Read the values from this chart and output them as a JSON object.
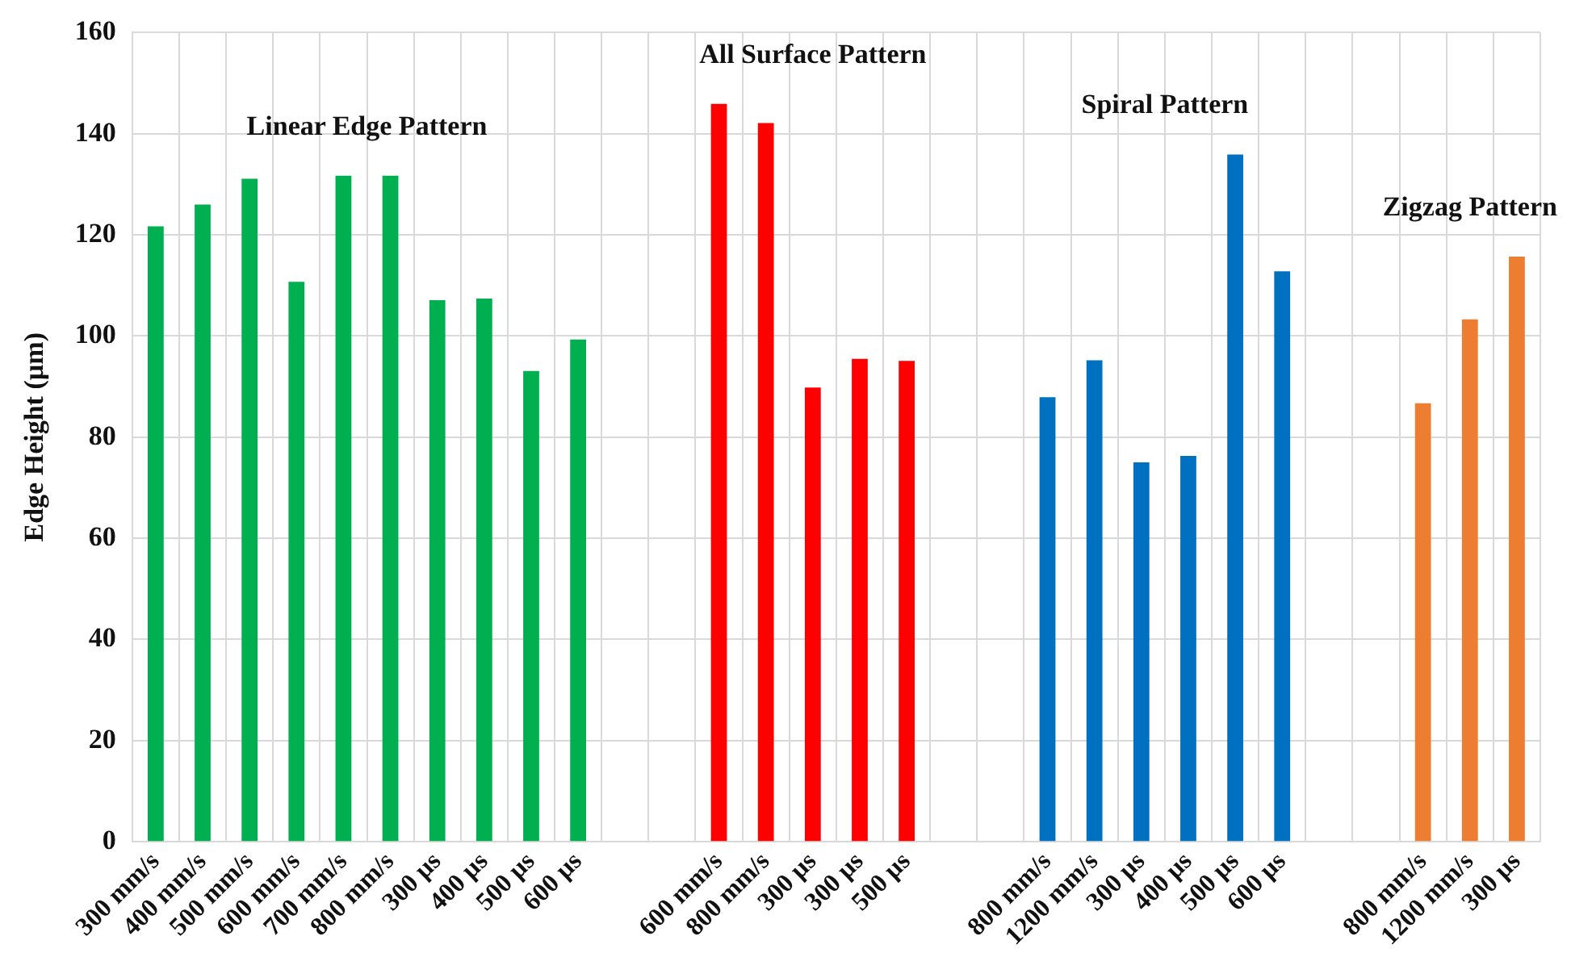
{
  "chart_data": {
    "type": "bar",
    "ylabel": "Edge Height (µm)",
    "categories": [
      "300 mm/s",
      "400 mm/s",
      "500 mm/s",
      "600 mm/s",
      "700 mm/s",
      "800 mm/s",
      "300 µs",
      "400 µs",
      "500 µs",
      "600 µs",
      null,
      null,
      "600 mm/s",
      "800 mm/s",
      "300 µs",
      "300 µs",
      "500 µs",
      null,
      null,
      "800 mm/s",
      "1200 mm/s",
      "300 µs",
      "400 µs",
      "500 µs",
      "600 µs",
      null,
      null,
      "800 mm/s",
      "1200 mm/s",
      "300 µs"
    ],
    "series": [
      {
        "color": "#00b050",
        "values": [
          121.7,
          126,
          131.1,
          110.7,
          131.7,
          131.7,
          107.1,
          107.4,
          93.1,
          99.3,
          null,
          null,
          null,
          null,
          null,
          null,
          null,
          null,
          null,
          null,
          null,
          null,
          null,
          null,
          null,
          null,
          null,
          null,
          null,
          null
        ]
      },
      {
        "color": "#ff0000",
        "values": [
          null,
          null,
          null,
          null,
          null,
          null,
          null,
          null,
          null,
          null,
          null,
          null,
          145.9,
          142.1,
          89.8,
          95.5,
          95.1,
          null,
          null,
          null,
          null,
          null,
          null,
          null,
          null,
          null,
          null,
          null,
          null,
          null
        ]
      },
      {
        "color": "#0070c0",
        "values": [
          null,
          null,
          null,
          null,
          null,
          null,
          null,
          null,
          null,
          null,
          null,
          null,
          null,
          null,
          null,
          null,
          null,
          null,
          null,
          87.9,
          95.2,
          75,
          76.3,
          135.9,
          112.8,
          null,
          null,
          null,
          null,
          null
        ]
      },
      {
        "color": "#ed7d31",
        "values": [
          null,
          null,
          null,
          null,
          null,
          null,
          null,
          null,
          null,
          null,
          null,
          null,
          null,
          null,
          null,
          null,
          null,
          null,
          null,
          null,
          null,
          null,
          null,
          null,
          null,
          null,
          null,
          86.7,
          103.3,
          115.7
        ]
      }
    ],
    "annotations": [
      "Linear Edge Pattern",
      "All Surface Pattern",
      "Spiral Pattern",
      "Zigzag Pattern"
    ],
    "ylim": [
      0,
      160
    ],
    "yticks": [
      0,
      20,
      40,
      60,
      80,
      100,
      120,
      140,
      160
    ],
    "grid": true,
    "legend": false
  }
}
